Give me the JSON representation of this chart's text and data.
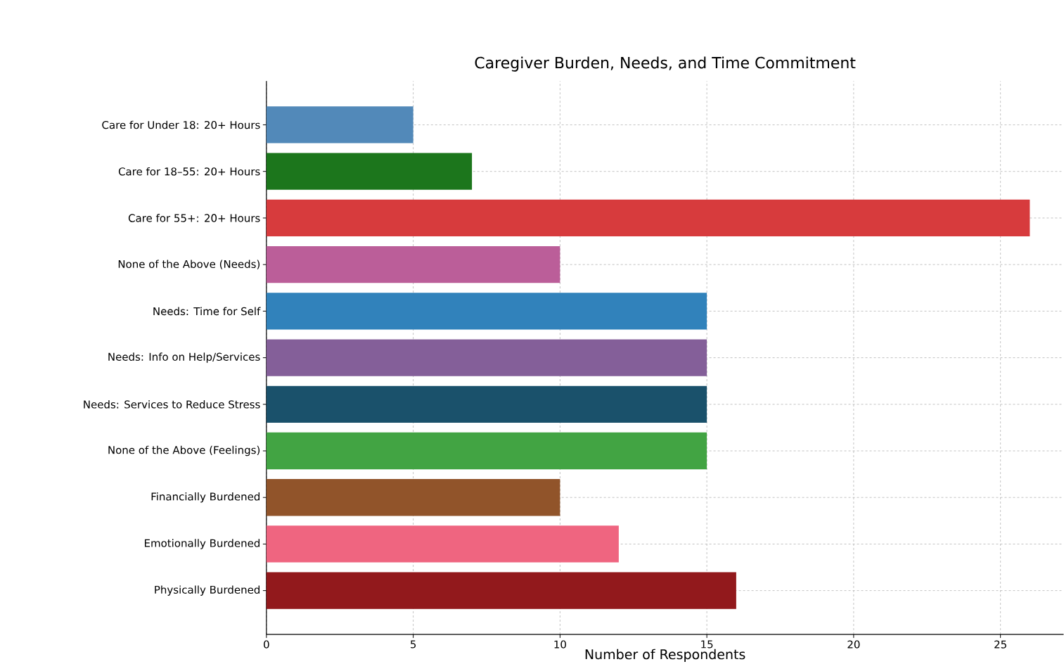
{
  "chart_data": {
    "type": "bar",
    "orientation": "horizontal",
    "title": "Caregiver Burden, Needs, and Time Commitment",
    "xlabel": "Number of Respondents",
    "categories": [
      "Care for Under 18: 20+ Hours",
      "Care for 18–55: 20+ Hours",
      "Care for 55+: 20+ Hours",
      "None of the Above (Needs)",
      "Needs: Time for Self",
      "Needs: Info on Help/Services",
      "Needs: Services to Reduce Stress",
      "None of the Above (Feelings)",
      "Financially Burdened",
      "Emotionally Burdened",
      "Physically Burdened"
    ],
    "values": [
      5,
      7,
      26,
      10,
      15,
      15,
      15,
      15,
      10,
      12,
      16
    ],
    "colors": [
      "#5289b9",
      "#1c761c",
      "#d73b3d",
      "#bb5e99",
      "#3182bb",
      "#845f99",
      "#1a516b",
      "#42a443",
      "#91542a",
      "#ef6580",
      "#92191c"
    ],
    "xlim": [
      0,
      27.15
    ],
    "xticks": [
      0,
      5,
      10,
      15,
      20,
      25
    ],
    "grid": true
  }
}
